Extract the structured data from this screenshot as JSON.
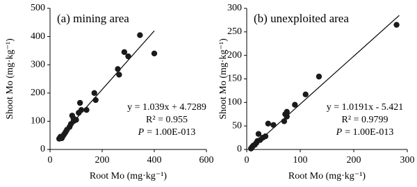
{
  "chart_data": [
    {
      "type": "scatter",
      "title": "(a) mining area",
      "x_label": "Root Mo (mg·kg⁻¹)",
      "y_label": "Shoot Mo (mg·kg⁻¹)",
      "equation": "y = 1.039x + 4.7289",
      "r_squared": "R² = 0.955",
      "p_symbol": "P",
      "p_text": "= 1.00E-013",
      "color": "#1a1a1a",
      "x": [
        35,
        38,
        40,
        45,
        50,
        55,
        60,
        65,
        75,
        80,
        90,
        85,
        90,
        100,
        110,
        115,
        120,
        140,
        170,
        175,
        260,
        265,
        285,
        300,
        345,
        400
      ],
      "values": [
        38,
        42,
        45,
        40,
        48,
        55,
        62,
        70,
        80,
        90,
        100,
        120,
        110,
        105,
        130,
        165,
        140,
        140,
        200,
        175,
        285,
        265,
        345,
        330,
        405,
        340
      ],
      "trendline": {
        "x": [
          30,
          400
        ],
        "values": [
          35.9,
          420.3
        ]
      },
      "xlim": [
        0,
        600
      ],
      "xticks": [
        0,
        200,
        400,
        600
      ],
      "ylim": [
        0,
        500
      ],
      "yticks": [
        0,
        100,
        200,
        300,
        400,
        500
      ]
    },
    {
      "type": "scatter",
      "title": "(b) unexploited area",
      "x_label": "Root Mo (mg·kg⁻¹)",
      "y_label": "Shoot Mo (mg·kg⁻¹)",
      "equation": "y = 1.0191x - 5.421",
      "r_squared": "R² = 0.9799",
      "p_symbol": "P",
      "p_text": "= 1.00E-013",
      "color": "#1a1a1a",
      "x": [
        8,
        10,
        12,
        15,
        18,
        20,
        22,
        25,
        30,
        35,
        40,
        50,
        70,
        72,
        75,
        75,
        90,
        110,
        135,
        280
      ],
      "values": [
        2,
        5,
        8,
        10,
        14,
        18,
        33,
        20,
        25,
        28,
        55,
        52,
        60,
        75,
        80,
        70,
        95,
        117,
        155,
        265
      ],
      "trendline": {
        "x": [
          5,
          285
        ],
        "values": [
          -0.3,
          285
        ]
      },
      "xlim": [
        0,
        300
      ],
      "xticks": [
        0,
        100,
        200,
        300
      ],
      "ylim": [
        0,
        300
      ],
      "yticks": [
        0,
        50,
        100,
        150,
        200,
        250,
        300
      ]
    }
  ]
}
